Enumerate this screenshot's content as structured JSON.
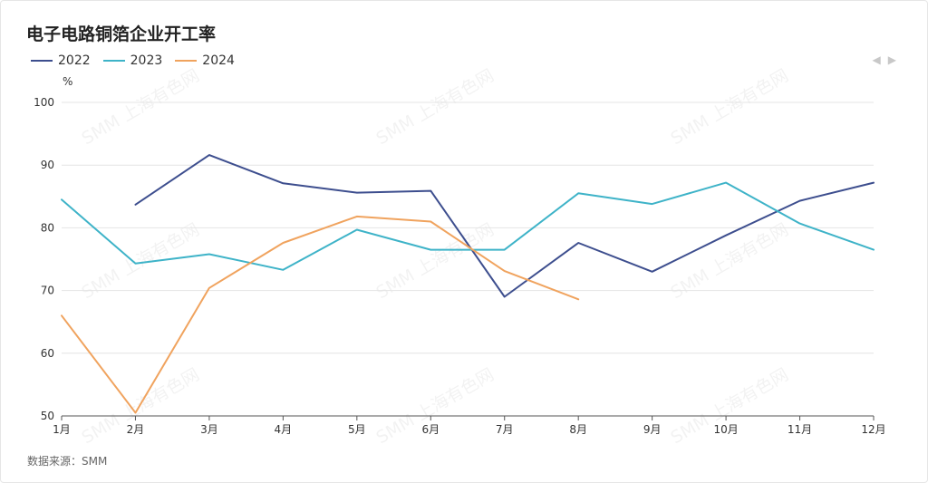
{
  "title": "电子电路铜箔企业开工率",
  "unit": "%",
  "source": "数据来源：SMM",
  "watermark": "SMM 上海有色网",
  "pager": {
    "prev": "◀",
    "next": "▶"
  },
  "chart_data": {
    "type": "line",
    "title": "电子电路铜箔企业开工率",
    "ylabel": "%",
    "ylim": [
      50,
      100
    ],
    "yticks": [
      50,
      60,
      70,
      80,
      90,
      100
    ],
    "grid": true,
    "legend_position": "top-left",
    "categories": [
      "1月",
      "2月",
      "3月",
      "4月",
      "5月",
      "6月",
      "7月",
      "8月",
      "9月",
      "10月",
      "11月",
      "12月"
    ],
    "series": [
      {
        "name": "2022",
        "color": "#3d4e8e",
        "values": [
          null,
          83.7,
          91.6,
          87.1,
          85.6,
          85.9,
          69.0,
          77.6,
          73.0,
          78.8,
          84.3,
          87.2
        ]
      },
      {
        "name": "2023",
        "color": "#3eb3c8",
        "values": [
          84.5,
          74.3,
          75.8,
          73.3,
          79.7,
          76.5,
          76.5,
          85.5,
          83.8,
          87.2,
          80.7,
          76.5
        ]
      },
      {
        "name": "2024",
        "color": "#f0a35e",
        "values": [
          66.0,
          50.5,
          70.4,
          77.6,
          81.8,
          81.0,
          73.1,
          68.6,
          null,
          null,
          null,
          null
        ]
      }
    ]
  }
}
